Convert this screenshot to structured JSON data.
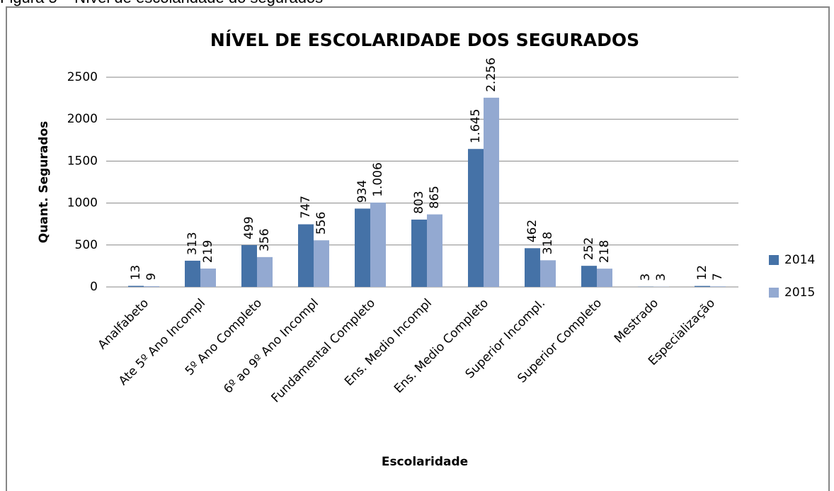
{
  "caption": "Figura 5 – Nível de escolaridade do segurados",
  "chart_data": {
    "type": "bar",
    "title": "NÍVEL DE ESCOLARIDADE DOS SEGURADOS",
    "x_label": "Escolaridade",
    "y_label": "Quant. Segurados",
    "categories": [
      "Analfabeto",
      "Ate 5º Ano Incompl",
      "5º Ano Completo",
      "6º ao 9º Ano Incompl",
      "Fundamental Completo",
      "Ens. Medio Incompl",
      "Ens. Medio Completo",
      "Superior Incompl.",
      "Superior Completo",
      "Mestrado",
      "Especialização"
    ],
    "series": [
      {
        "name": "2014",
        "color": "#4572a7",
        "values": [
          13,
          313,
          499,
          747,
          934,
          803,
          1645,
          462,
          252,
          3,
          12
        ],
        "value_labels": [
          "13",
          "313",
          "499",
          "747",
          "934",
          "803",
          "1.645",
          "462",
          "252",
          "3",
          "12"
        ]
      },
      {
        "name": "2015",
        "color": "#93a9d1",
        "values": [
          9,
          219,
          356,
          556,
          1006,
          865,
          2256,
          318,
          218,
          3,
          7
        ],
        "value_labels": [
          "9",
          "219",
          "356",
          "556",
          "1.006",
          "865",
          "2.256",
          "318",
          "218",
          "3",
          "7"
        ]
      }
    ],
    "ylim": [
      0,
      2500
    ],
    "yticks": [
      0,
      500,
      1000,
      1500,
      2000,
      2500
    ],
    "grid": true,
    "legend": "right"
  }
}
